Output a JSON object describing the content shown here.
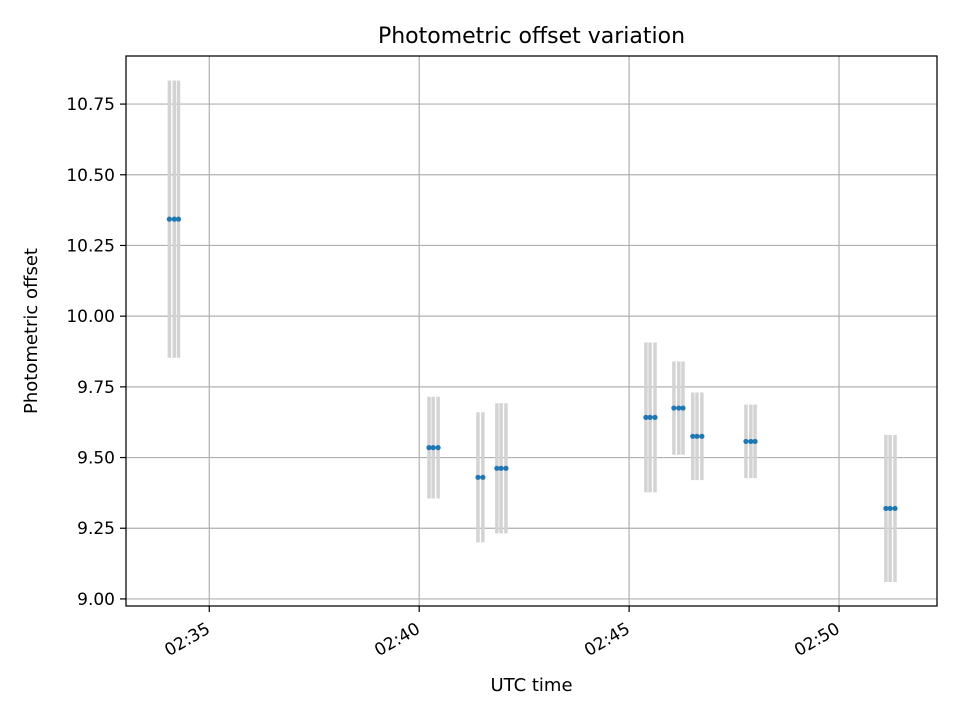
{
  "chart_data": {
    "type": "scatter",
    "title": "Photometric offset variation",
    "xlabel": "UTC time",
    "ylabel": "Photometric offset",
    "x_tick_labels": [
      "02:35",
      "02:40",
      "02:45",
      "02:50"
    ],
    "x_ticks_time": [
      "02:35",
      "02:40",
      "02:45",
      "02:50"
    ],
    "xlim_time": [
      "02:33:01",
      "02:52:20"
    ],
    "y_ticks": [
      9.0,
      9.25,
      9.5,
      9.75,
      10.0,
      10.25,
      10.5,
      10.75
    ],
    "y_tick_labels": [
      "9.00",
      "9.25",
      "9.50",
      "9.75",
      "10.00",
      "10.25",
      "10.50",
      "10.75"
    ],
    "ylim": [
      8.975,
      10.92
    ],
    "grid": true,
    "colors": {
      "points": "#1f77b4",
      "errorbars": "#d3d3d3",
      "grid": "#b0b0b0"
    },
    "points": [
      {
        "t": "02:34:03",
        "y": 10.343,
        "err": 0.49
      },
      {
        "t": "02:34:10",
        "y": 10.343,
        "err": 0.49
      },
      {
        "t": "02:34:16",
        "y": 10.343,
        "err": 0.49
      },
      {
        "t": "02:40:14",
        "y": 9.535,
        "err": 0.18
      },
      {
        "t": "02:40:20",
        "y": 9.535,
        "err": 0.18
      },
      {
        "t": "02:40:27",
        "y": 9.535,
        "err": 0.18
      },
      {
        "t": "02:41:24",
        "y": 9.43,
        "err": 0.23
      },
      {
        "t": "02:41:31",
        "y": 9.43,
        "err": 0.23
      },
      {
        "t": "02:41:51",
        "y": 9.462,
        "err": 0.23
      },
      {
        "t": "02:41:57",
        "y": 9.462,
        "err": 0.23
      },
      {
        "t": "02:42:04",
        "y": 9.462,
        "err": 0.23
      },
      {
        "t": "02:45:24",
        "y": 9.642,
        "err": 0.265
      },
      {
        "t": "02:45:30",
        "y": 9.642,
        "err": 0.265
      },
      {
        "t": "02:45:37",
        "y": 9.642,
        "err": 0.265
      },
      {
        "t": "02:46:04",
        "y": 9.675,
        "err": 0.165
      },
      {
        "t": "02:46:11",
        "y": 9.675,
        "err": 0.165
      },
      {
        "t": "02:46:17",
        "y": 9.675,
        "err": 0.165
      },
      {
        "t": "02:46:31",
        "y": 9.575,
        "err": 0.155
      },
      {
        "t": "02:46:37",
        "y": 9.575,
        "err": 0.155
      },
      {
        "t": "02:46:44",
        "y": 9.575,
        "err": 0.155
      },
      {
        "t": "02:47:47",
        "y": 9.557,
        "err": 0.13
      },
      {
        "t": "02:47:54",
        "y": 9.557,
        "err": 0.13
      },
      {
        "t": "02:48:00",
        "y": 9.557,
        "err": 0.13
      },
      {
        "t": "02:51:07",
        "y": 9.32,
        "err": 0.26
      },
      {
        "t": "02:51:13",
        "y": 9.32,
        "err": 0.26
      },
      {
        "t": "02:51:20",
        "y": 9.32,
        "err": 0.26
      }
    ]
  }
}
